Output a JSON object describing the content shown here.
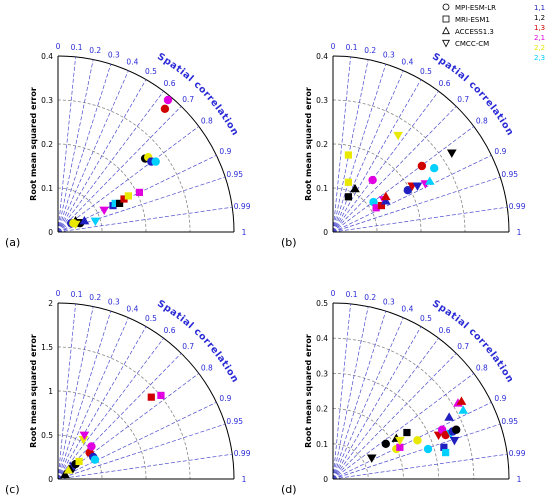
{
  "figure": {
    "legend": {
      "models": [
        {
          "name": "MPI-ESM-LR",
          "marker": "circle"
        },
        {
          "name": "MRI-ESM1",
          "marker": "square"
        },
        {
          "name": "ACCESS1.3",
          "marker": "triangle-up"
        },
        {
          "name": "CMCC-CM",
          "marker": "triangle-down"
        }
      ],
      "configs": [
        {
          "label": "1,1",
          "color": "#2020c0"
        },
        {
          "label": "1,2",
          "color": "#000000"
        },
        {
          "label": "1,3",
          "color": "#d00000"
        },
        {
          "label": "2,1",
          "color": "#e000e0"
        },
        {
          "label": "2,2",
          "color": "#e8e800"
        },
        {
          "label": "2,3",
          "color": "#00d0ff"
        }
      ]
    },
    "colors": {
      "axis_text": "#2b2bd6",
      "ray": "#4b4bd0",
      "arc": "#888888",
      "frame": "#000000"
    }
  },
  "chart_data": [
    {
      "type": "scatter",
      "subplot_label": "(a)",
      "ylabel": "Root mean squared error",
      "corr_label": "Spatial correlation",
      "ylim": [
        0,
        0.4
      ],
      "yticks": [
        0,
        0.1,
        0.2,
        0.3,
        0.4
      ],
      "corr_ticks": [
        0,
        0.1,
        0.2,
        0.3,
        0.4,
        0.5,
        0.6,
        0.7,
        0.8,
        0.9,
        0.95,
        0.99,
        1
      ],
      "points": [
        {
          "x": 0.03,
          "y": 0.02,
          "model": "circle",
          "config": "1,1"
        },
        {
          "x": 0.05,
          "y": 0.02,
          "model": "circle",
          "config": "1,2"
        },
        {
          "x": 0.04,
          "y": 0.025,
          "model": "triangle-up",
          "config": "1,2"
        },
        {
          "x": 0.045,
          "y": 0.022,
          "model": "triangle-down",
          "config": "1,2"
        },
        {
          "x": 0.035,
          "y": 0.02,
          "model": "circle",
          "config": "2,2"
        },
        {
          "x": 0.04,
          "y": 0.018,
          "model": "triangle-down",
          "config": "2,2"
        },
        {
          "x": 0.06,
          "y": 0.025,
          "model": "triangle-up",
          "config": "1,1"
        },
        {
          "x": 0.085,
          "y": 0.025,
          "model": "triangle-down",
          "config": "2,3"
        },
        {
          "x": 0.105,
          "y": 0.05,
          "model": "triangle-down",
          "config": "2,1"
        },
        {
          "x": 0.125,
          "y": 0.06,
          "model": "square",
          "config": "1,1"
        },
        {
          "x": 0.13,
          "y": 0.065,
          "model": "square",
          "config": "2,3"
        },
        {
          "x": 0.14,
          "y": 0.065,
          "model": "square",
          "config": "1,2"
        },
        {
          "x": 0.15,
          "y": 0.075,
          "model": "square",
          "config": "1,3"
        },
        {
          "x": 0.16,
          "y": 0.082,
          "model": "square",
          "config": "2,2"
        },
        {
          "x": 0.185,
          "y": 0.09,
          "model": "square",
          "config": "2,1"
        },
        {
          "x": 0.198,
          "y": 0.167,
          "model": "circle",
          "config": "1,2"
        },
        {
          "x": 0.205,
          "y": 0.17,
          "model": "circle",
          "config": "2,2"
        },
        {
          "x": 0.212,
          "y": 0.16,
          "model": "circle",
          "config": "1,1"
        },
        {
          "x": 0.222,
          "y": 0.16,
          "model": "circle",
          "config": "2,3"
        },
        {
          "x": 0.243,
          "y": 0.28,
          "model": "circle",
          "config": "1,3"
        },
        {
          "x": 0.25,
          "y": 0.3,
          "model": "circle",
          "config": "2,1"
        }
      ]
    },
    {
      "type": "scatter",
      "subplot_label": "(b)",
      "ylabel": "Root mean squared error",
      "corr_label": "Spatial correlation",
      "ylim": [
        0,
        0.4
      ],
      "yticks": [
        0,
        0.1,
        0.2,
        0.3,
        0.4
      ],
      "corr_ticks": [
        0,
        0.1,
        0.2,
        0.3,
        0.4,
        0.5,
        0.6,
        0.7,
        0.8,
        0.9,
        0.95,
        0.99,
        1
      ],
      "points": [
        {
          "x": 0.035,
          "y": 0.175,
          "model": "square",
          "config": "2,2"
        },
        {
          "x": 0.035,
          "y": 0.113,
          "model": "square",
          "config": "2,2"
        },
        {
          "x": 0.035,
          "y": 0.08,
          "model": "square",
          "config": "1,2"
        },
        {
          "x": 0.05,
          "y": 0.098,
          "model": "triangle-up",
          "config": "1,2"
        },
        {
          "x": 0.09,
          "y": 0.118,
          "model": "circle",
          "config": "2,1"
        },
        {
          "x": 0.092,
          "y": 0.068,
          "model": "circle",
          "config": "2,3"
        },
        {
          "x": 0.098,
          "y": 0.055,
          "model": "square",
          "config": "2,1"
        },
        {
          "x": 0.11,
          "y": 0.06,
          "model": "square",
          "config": "1,3"
        },
        {
          "x": 0.115,
          "y": 0.074,
          "model": "triangle-down",
          "config": "2,1"
        },
        {
          "x": 0.12,
          "y": 0.07,
          "model": "triangle-up",
          "config": "1,1"
        },
        {
          "x": 0.12,
          "y": 0.08,
          "model": "triangle-up",
          "config": "1,3"
        },
        {
          "x": 0.148,
          "y": 0.22,
          "model": "triangle-down",
          "config": "2,2"
        },
        {
          "x": 0.17,
          "y": 0.095,
          "model": "circle",
          "config": "1,1"
        },
        {
          "x": 0.18,
          "y": 0.105,
          "model": "triangle-down",
          "config": "1,3"
        },
        {
          "x": 0.192,
          "y": 0.105,
          "model": "triangle-down",
          "config": "1,1"
        },
        {
          "x": 0.202,
          "y": 0.15,
          "model": "circle",
          "config": "1,3"
        },
        {
          "x": 0.21,
          "y": 0.11,
          "model": "triangle-down",
          "config": "2,1"
        },
        {
          "x": 0.22,
          "y": 0.115,
          "model": "triangle-up",
          "config": "2,3"
        },
        {
          "x": 0.23,
          "y": 0.145,
          "model": "circle",
          "config": "2,3"
        },
        {
          "x": 0.27,
          "y": 0.18,
          "model": "triangle-down",
          "config": "1,2"
        }
      ]
    },
    {
      "type": "scatter",
      "subplot_label": "(c)",
      "ylabel": "Root mean squared error",
      "corr_label": "Spatial correlation",
      "ylim": [
        0,
        2
      ],
      "yticks": [
        0,
        0.5,
        1,
        1.5,
        2
      ],
      "corr_ticks": [
        0,
        0.1,
        0.2,
        0.3,
        0.4,
        0.5,
        0.6,
        0.7,
        0.8,
        0.9,
        0.95,
        0.99,
        1
      ],
      "points": [
        {
          "x": 0.08,
          "y": 0.05,
          "model": "triangle-up",
          "config": "1,2"
        },
        {
          "x": 0.12,
          "y": 0.1,
          "model": "triangle-up",
          "config": "2,2"
        },
        {
          "x": 0.17,
          "y": 0.12,
          "model": "triangle-down",
          "config": "1,2"
        },
        {
          "x": 0.18,
          "y": 0.15,
          "model": "triangle-down",
          "config": "1,1"
        },
        {
          "x": 0.2,
          "y": 0.17,
          "model": "circle",
          "config": "1,2"
        },
        {
          "x": 0.24,
          "y": 0.2,
          "model": "square",
          "config": "2,2"
        },
        {
          "x": 0.29,
          "y": 0.45,
          "model": "triangle-down",
          "config": "2,2"
        },
        {
          "x": 0.3,
          "y": 0.5,
          "model": "triangle-down",
          "config": "2,1"
        },
        {
          "x": 0.36,
          "y": 0.3,
          "model": "circle",
          "config": "1,3"
        },
        {
          "x": 0.38,
          "y": 0.37,
          "model": "circle",
          "config": "2,1"
        },
        {
          "x": 0.4,
          "y": 0.25,
          "model": "circle",
          "config": "1,1"
        },
        {
          "x": 0.42,
          "y": 0.22,
          "model": "circle",
          "config": "2,3"
        },
        {
          "x": 1.06,
          "y": 0.93,
          "model": "square",
          "config": "1,3"
        },
        {
          "x": 1.17,
          "y": 0.95,
          "model": "square",
          "config": "2,1"
        }
      ]
    },
    {
      "type": "scatter",
      "subplot_label": "(d)",
      "ylabel": "Root mean squared error",
      "corr_label": "Spatial correlation",
      "ylim": [
        0,
        0.5
      ],
      "yticks": [
        0,
        0.1,
        0.2,
        0.3,
        0.4,
        0.5
      ],
      "corr_ticks": [
        0,
        0.1,
        0.2,
        0.3,
        0.4,
        0.5,
        0.6,
        0.7,
        0.8,
        0.9,
        0.95,
        0.99,
        1
      ],
      "points": [
        {
          "x": 0.11,
          "y": 0.06,
          "model": "triangle-down",
          "config": "1,2"
        },
        {
          "x": 0.15,
          "y": 0.1,
          "model": "circle",
          "config": "1,2"
        },
        {
          "x": 0.18,
          "y": 0.115,
          "model": "triangle-up",
          "config": "1,2"
        },
        {
          "x": 0.18,
          "y": 0.085,
          "model": "circle",
          "config": "2,2"
        },
        {
          "x": 0.19,
          "y": 0.09,
          "model": "square",
          "config": "2,1"
        },
        {
          "x": 0.19,
          "y": 0.11,
          "model": "triangle-down",
          "config": "2,2"
        },
        {
          "x": 0.21,
          "y": 0.132,
          "model": "square",
          "config": "1,2"
        },
        {
          "x": 0.24,
          "y": 0.11,
          "model": "circle",
          "config": "2,2"
        },
        {
          "x": 0.27,
          "y": 0.085,
          "model": "circle",
          "config": "2,3"
        },
        {
          "x": 0.3,
          "y": 0.125,
          "model": "triangle-down",
          "config": "1,3"
        },
        {
          "x": 0.31,
          "y": 0.14,
          "model": "circle",
          "config": "2,1"
        },
        {
          "x": 0.315,
          "y": 0.09,
          "model": "square",
          "config": "1,1"
        },
        {
          "x": 0.32,
          "y": 0.075,
          "model": "square",
          "config": "2,3"
        },
        {
          "x": 0.32,
          "y": 0.125,
          "model": "circle",
          "config": "1,3"
        },
        {
          "x": 0.33,
          "y": 0.175,
          "model": "triangle-up",
          "config": "1,1"
        },
        {
          "x": 0.335,
          "y": 0.13,
          "model": "triangle-down",
          "config": "2,3"
        },
        {
          "x": 0.34,
          "y": 0.135,
          "model": "circle",
          "config": "1,1"
        },
        {
          "x": 0.345,
          "y": 0.11,
          "model": "triangle-down",
          "config": "1,1"
        },
        {
          "x": 0.35,
          "y": 0.14,
          "model": "circle",
          "config": "1,2"
        },
        {
          "x": 0.355,
          "y": 0.215,
          "model": "triangle-up",
          "config": "2,1"
        },
        {
          "x": 0.365,
          "y": 0.22,
          "model": "triangle-up",
          "config": "1,3"
        },
        {
          "x": 0.37,
          "y": 0.195,
          "model": "triangle-up",
          "config": "2,3"
        }
      ]
    }
  ]
}
